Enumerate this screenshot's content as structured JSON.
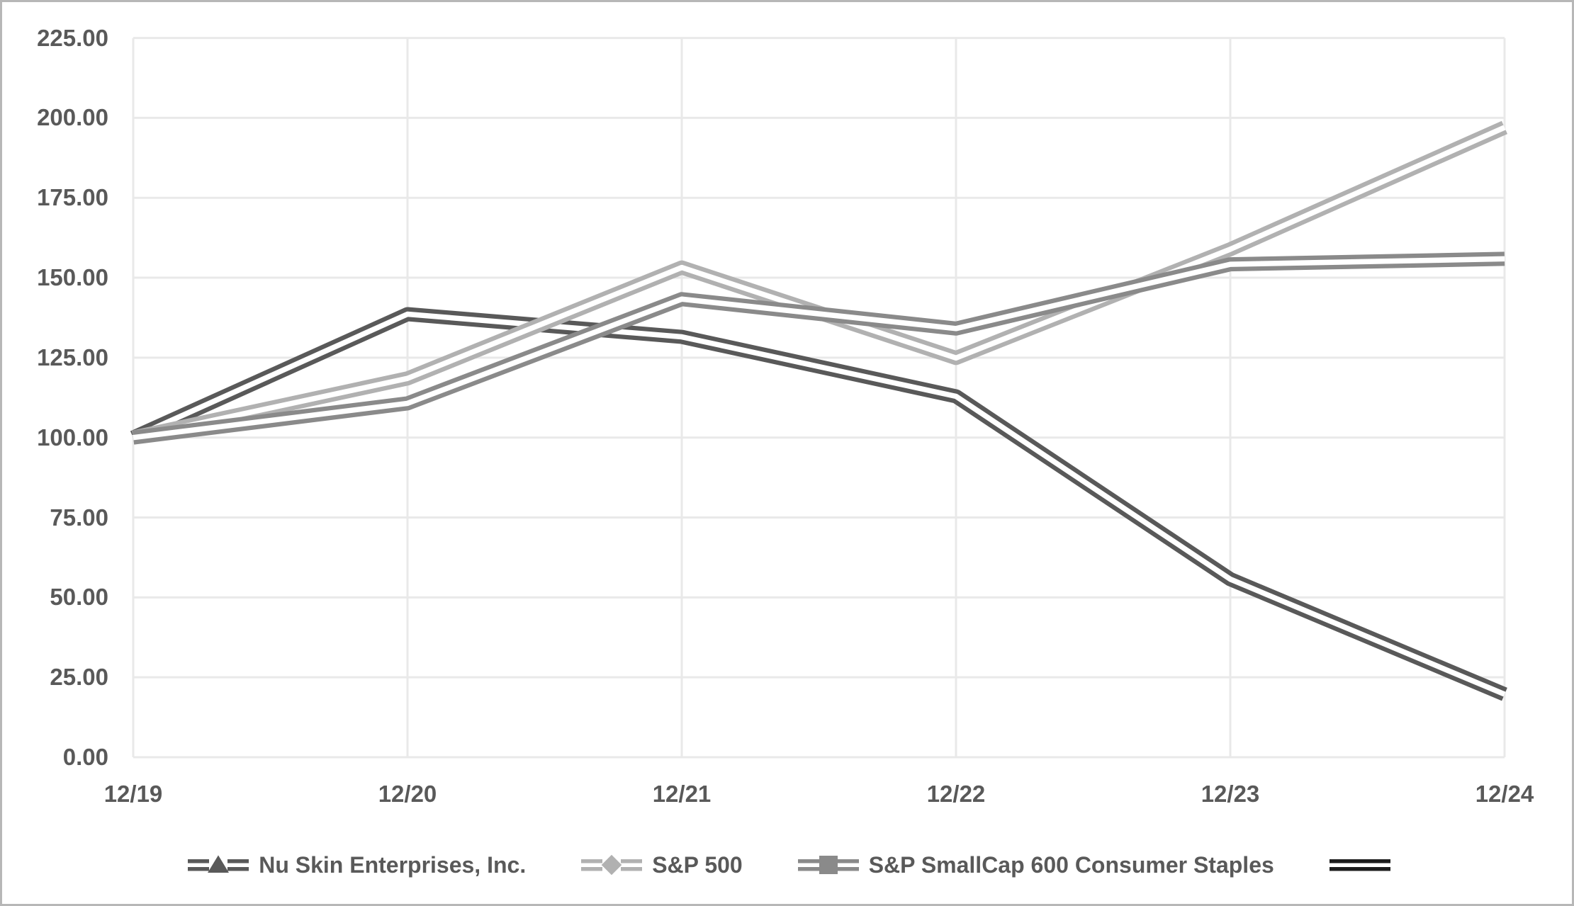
{
  "chart_data": {
    "type": "line",
    "title": "",
    "categories": [
      "12/19",
      "12/20",
      "12/21",
      "12/22",
      "12/23",
      "12/24"
    ],
    "series": [
      {
        "name": "Nu Skin Enterprises, Inc.",
        "marker": "triangle",
        "color": "#595959",
        "values": [
          100.0,
          138.6,
          131.5,
          112.9,
          55.7,
          19.7
        ]
      },
      {
        "name": "S&P 500",
        "marker": "diamond",
        "color": "#b1b1b1",
        "values": [
          100.0,
          118.5,
          153.2,
          124.9,
          158.9,
          197.0
        ]
      },
      {
        "name": "S&P SmallCap 600 Consumer Staples",
        "marker": "square",
        "color": "#8a8a8a",
        "values": [
          100.0,
          110.7,
          143.3,
          134.1,
          154.2,
          155.9
        ]
      },
      {
        "name": "",
        "marker": "none",
        "color": "#1c1c1c",
        "values": []
      }
    ],
    "ylim": [
      0,
      225
    ],
    "y_tick_step": 25,
    "y_ticks": [
      "225.00",
      "200.00",
      "175.00",
      "150.00",
      "125.00",
      "100.00",
      "75.00",
      "50.00",
      "25.00",
      "0.00"
    ],
    "grid": true,
    "line_style": "double",
    "legend_position": "bottom"
  },
  "colors": {
    "background": "#ffffff",
    "frame_border": "#b7b7b7",
    "gridline": "#e9e9e9",
    "axis_text": "#595959"
  }
}
